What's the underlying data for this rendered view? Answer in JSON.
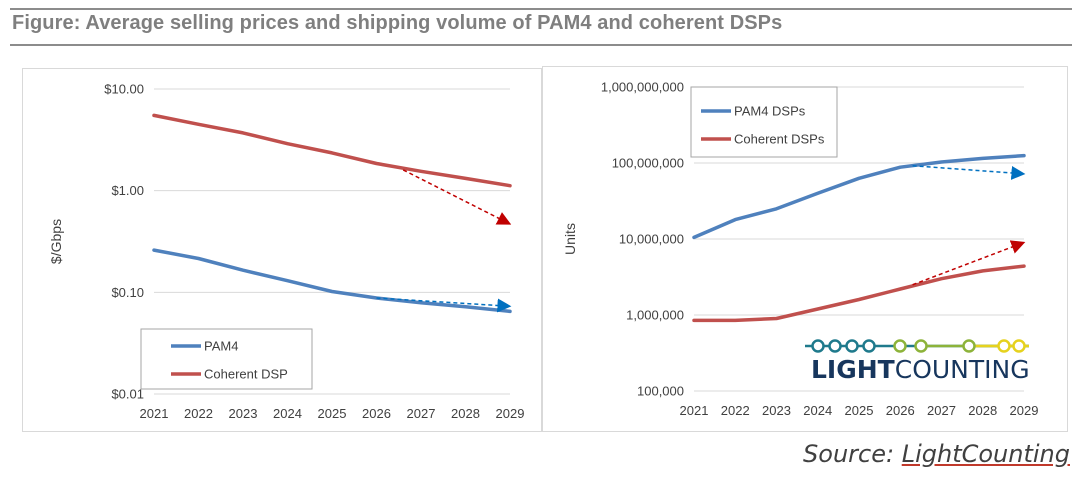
{
  "figure_title": "Figure: Average selling prices and shipping volume of PAM4 and coherent DSPs",
  "source": {
    "prefix": "Source: ",
    "name": "LightCounting"
  },
  "logo": {
    "bold": "LIGHT",
    "light": "COUNTING"
  },
  "colors": {
    "blue": "#4f81bd",
    "red": "#c0504d",
    "blue_arrow": "#0070c0",
    "red_arrow": "#c00000",
    "logo_text": "#17365d",
    "logo_teal": "#1f7a8c",
    "logo_green": "#8db33a",
    "logo_yellow": "#e6d21e"
  },
  "chart_data": [
    {
      "type": "line",
      "scale": "log",
      "x": [
        2021,
        2022,
        2023,
        2024,
        2025,
        2026,
        2027,
        2028,
        2029
      ],
      "xticks": [
        "2021",
        "2022",
        "2023",
        "2024",
        "2025",
        "2026",
        "2027",
        "2028",
        "2029"
      ],
      "ylabel": "$/Gbps",
      "ylim": [
        0.01,
        10
      ],
      "yticks": [
        {
          "value": 10,
          "label": "$10.00"
        },
        {
          "value": 1,
          "label": "$1.00"
        },
        {
          "value": 0.1,
          "label": "$0.10"
        },
        {
          "value": 0.01,
          "label": "$0.01"
        }
      ],
      "grid": true,
      "legend": "bottom-left",
      "series": [
        {
          "name": "PAM4",
          "color": "#4f81bd",
          "values": [
            0.26,
            0.215,
            0.165,
            0.13,
            0.102,
            0.088,
            0.079,
            0.072,
            0.065
          ]
        },
        {
          "name": "Coherent DSP",
          "color": "#c0504d",
          "values": [
            5.5,
            4.5,
            3.7,
            2.9,
            2.35,
            1.85,
            1.55,
            1.32,
            1.12
          ]
        }
      ],
      "annotations": [
        {
          "type": "dashed-arrow",
          "color": "#0070c0",
          "from": [
            2026,
            0.088
          ],
          "to": [
            2029,
            0.073
          ]
        },
        {
          "type": "dashed-arrow",
          "color": "#c00000",
          "from": [
            2026.6,
            1.6
          ],
          "to": [
            2029,
            0.47
          ]
        }
      ]
    },
    {
      "type": "line",
      "scale": "log",
      "x": [
        2021,
        2022,
        2023,
        2024,
        2025,
        2026,
        2027,
        2028,
        2029
      ],
      "xticks": [
        "2021",
        "2022",
        "2023",
        "2024",
        "2025",
        "2026",
        "2027",
        "2028",
        "2029"
      ],
      "ylabel": "Units",
      "ylim": [
        100000,
        1000000000
      ],
      "yticks": [
        {
          "value": 1000000000,
          "label": "1,000,000,000"
        },
        {
          "value": 100000000,
          "label": "100,000,000"
        },
        {
          "value": 10000000,
          "label": "10,000,000"
        },
        {
          "value": 1000000,
          "label": "1,000,000"
        },
        {
          "value": 100000,
          "label": "100,000"
        }
      ],
      "grid": true,
      "legend": "top-left",
      "series": [
        {
          "name": "PAM4 DSPs",
          "color": "#4f81bd",
          "values": [
            10500000,
            18000000,
            25000000,
            40000000,
            63000000,
            88000000,
            103000000,
            115000000,
            125000000
          ]
        },
        {
          "name": "Coherent DSPs",
          "color": "#c0504d",
          "values": [
            850000,
            850000,
            900000,
            1200000,
            1600000,
            2200000,
            3000000,
            3800000,
            4400000
          ]
        }
      ],
      "annotations": [
        {
          "type": "dashed-arrow",
          "color": "#0070c0",
          "from": [
            2026.3,
            92000000
          ],
          "to": [
            2029,
            72000000
          ]
        },
        {
          "type": "dashed-arrow",
          "color": "#c00000",
          "from": [
            2026.3,
            2500000
          ],
          "to": [
            2029,
            9000000
          ]
        }
      ]
    }
  ]
}
